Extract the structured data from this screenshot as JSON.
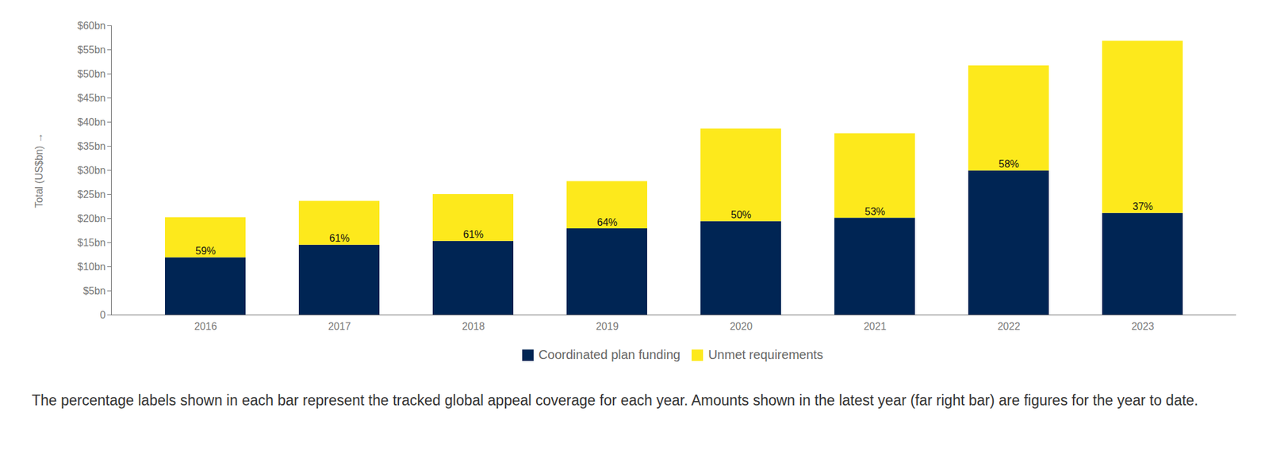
{
  "chart_data": {
    "type": "bar",
    "stacked": true,
    "y_label": "Total (US$bn)",
    "categories": [
      "2016",
      "2017",
      "2018",
      "2019",
      "2020",
      "2021",
      "2022",
      "2023"
    ],
    "series": [
      {
        "name": "Coordinated plan funding",
        "color": "#002554",
        "values": [
          11.9,
          14.5,
          15.3,
          17.9,
          19.4,
          20.1,
          29.9,
          21.1
        ]
      },
      {
        "name": "Unmet requirements",
        "color": "#fde91c",
        "values": [
          8.3,
          9.1,
          9.7,
          9.8,
          19.2,
          17.5,
          21.8,
          35.7
        ]
      }
    ],
    "annotations": [
      "59%",
      "61%",
      "61%",
      "64%",
      "50%",
      "53%",
      "58%",
      "37%"
    ],
    "ylim": [
      0,
      60
    ],
    "yticks": [
      0,
      {
        "value": 5,
        "label": "$5bn"
      },
      {
        "value": 10,
        "label": "$10bn"
      },
      {
        "value": 15,
        "label": "$15bn"
      },
      {
        "value": 20,
        "label": "$20bn"
      },
      {
        "value": 25,
        "label": "$25bn"
      },
      {
        "value": 30,
        "label": "$30bn"
      },
      {
        "value": 35,
        "label": "$35bn"
      },
      {
        "value": 40,
        "label": "$40bn"
      },
      {
        "value": 45,
        "label": "$45bn"
      },
      {
        "value": 50,
        "label": "$50bn"
      },
      {
        "value": 55,
        "label": "$55bn"
      },
      {
        "value": 60,
        "label": "$60bn"
      }
    ],
    "grid": false,
    "legend": "bottom",
    "caption": "The percentage labels shown in each bar represent the tracked global appeal coverage for each year. Amounts shown in the latest year (far right bar) are figures for the year to date."
  }
}
